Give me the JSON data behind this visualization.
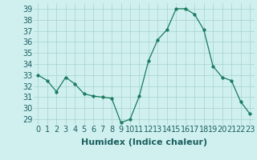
{
  "x": [
    0,
    1,
    2,
    3,
    4,
    5,
    6,
    7,
    8,
    9,
    10,
    11,
    12,
    13,
    14,
    15,
    16,
    17,
    18,
    19,
    20,
    21,
    22,
    23
  ],
  "y": [
    33.0,
    32.5,
    31.5,
    32.8,
    32.2,
    31.3,
    31.1,
    31.0,
    30.9,
    28.7,
    29.0,
    31.1,
    34.3,
    36.2,
    37.1,
    39.0,
    39.0,
    38.5,
    37.1,
    33.8,
    32.8,
    32.5,
    30.6,
    29.5
  ],
  "line_color": "#1a7a5e",
  "marker": "o",
  "marker_size": 2.5,
  "bg_color": "#d0f0f0",
  "grid_color": "#aad8d0",
  "xlabel": "Humidex (Indice chaleur)",
  "xlabel_fontsize": 8,
  "tick_fontsize": 7,
  "ylim": [
    28.5,
    39.5
  ],
  "yticks": [
    29,
    30,
    31,
    32,
    33,
    34,
    35,
    36,
    37,
    38,
    39
  ],
  "xlim": [
    -0.5,
    23.5
  ],
  "xticks": [
    0,
    1,
    2,
    3,
    4,
    5,
    6,
    7,
    8,
    9,
    10,
    11,
    12,
    13,
    14,
    15,
    16,
    17,
    18,
    19,
    20,
    21,
    22,
    23
  ],
  "xtick_labels": [
    "0",
    "1",
    "2",
    "3",
    "4",
    "5",
    "6",
    "7",
    "8",
    "9",
    "10",
    "11",
    "12",
    "13",
    "14",
    "15",
    "16",
    "17",
    "18",
    "19",
    "20",
    "21",
    "22",
    "23"
  ],
  "label_color": "#1a5e5e"
}
